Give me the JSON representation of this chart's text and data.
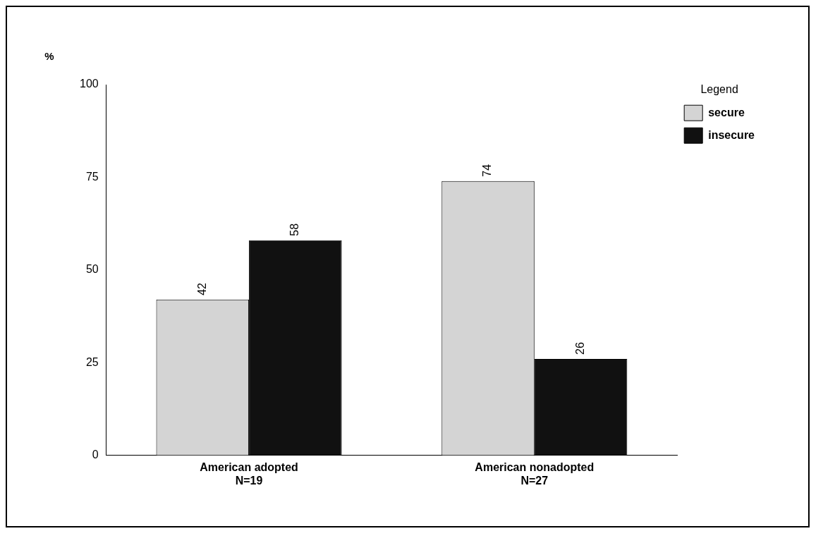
{
  "chart_data": {
    "type": "bar",
    "ylabel": "%",
    "legend_title": "Legend",
    "categories": [
      "American adopted\nN=19",
      "American nonadopted\nN=27"
    ],
    "series": [
      {
        "name": "secure",
        "color": "#d4d4d4",
        "values": [
          42,
          74
        ]
      },
      {
        "name": "insecure",
        "color": "#111111",
        "values": [
          58,
          26
        ]
      }
    ],
    "ylim": [
      0,
      100
    ],
    "yticks": [
      0,
      25,
      50,
      75,
      100
    ],
    "grid": false,
    "legend": "top right",
    "data_labels": true
  }
}
